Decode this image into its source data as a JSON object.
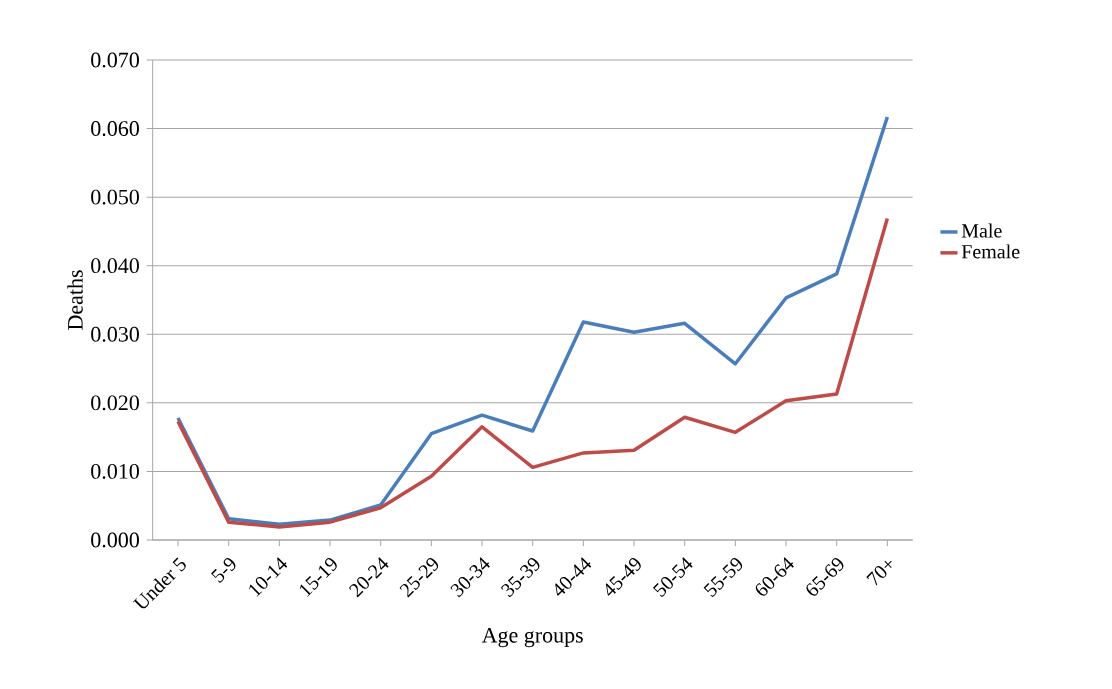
{
  "chart_data": {
    "type": "line",
    "xlabel": "Age groups",
    "ylabel": "Deaths",
    "categories": [
      "Under 5",
      "5-9",
      "10-14",
      "15-19",
      "20-24",
      "25-29",
      "30-34",
      "35-39",
      "40-44",
      "45-49",
      "50-54",
      "55-59",
      "60-64",
      "65-69",
      "70+"
    ],
    "series": [
      {
        "name": "Male",
        "color": "#4a7ebb",
        "values": [
          0.0178,
          0.0031,
          0.0023,
          0.0029,
          0.0051,
          0.0155,
          0.0182,
          0.0159,
          0.0318,
          0.0303,
          0.0316,
          0.0257,
          0.0353,
          0.0388,
          0.0617
        ]
      },
      {
        "name": "Female",
        "color": "#be4b48",
        "values": [
          0.0173,
          0.0026,
          0.0019,
          0.0026,
          0.0047,
          0.0093,
          0.0165,
          0.0106,
          0.0127,
          0.0131,
          0.0179,
          0.0157,
          0.0203,
          0.0213,
          0.0469
        ]
      }
    ],
    "ylim": [
      0,
      0.07
    ],
    "yticks": [
      {
        "value": 0,
        "label": "0.000"
      },
      {
        "value": 0.01,
        "label": "0.010"
      },
      {
        "value": 0.02,
        "label": "0.020"
      },
      {
        "value": 0.03,
        "label": "0.030"
      },
      {
        "value": 0.04,
        "label": "0.040"
      },
      {
        "value": 0.05,
        "label": "0.050"
      },
      {
        "value": 0.06,
        "label": "0.060"
      },
      {
        "value": 0.07,
        "label": "0.070"
      }
    ],
    "grid": "y",
    "legend": "right",
    "marker": "none",
    "line_style": "solid"
  }
}
